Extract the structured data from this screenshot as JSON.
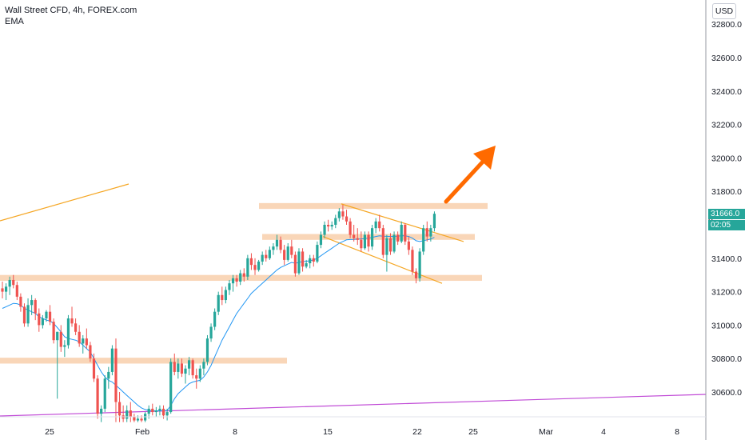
{
  "legend": {
    "title": "Wall Street CFD, 4h, FOREX.com",
    "indicator": "EMA"
  },
  "price_axis": {
    "currency_label": "USD",
    "current_price": "31666.0",
    "countdown": "02:05",
    "partial_label": "3"
  },
  "colors": {
    "up": "#26a69a",
    "down": "#ef5350",
    "ema": "#2196f3",
    "zone": "#f7c8a0",
    "trend_orange": "#f5a623",
    "trend_purple": "#c04ad6",
    "arrow": "#ff6a00",
    "price_badge": "#26a69a"
  },
  "chart_data": {
    "type": "candlestick",
    "symbol": "Wall Street CFD",
    "timeframe": "4h",
    "y_ticks": [
      30600,
      30800,
      31000,
      31200,
      31400,
      31600,
      31800,
      32000,
      32200,
      32400,
      32600,
      32800
    ],
    "ylim": [
      30420,
      32900
    ],
    "x_tick_labels": [
      "25",
      "Feb",
      "8",
      "15",
      "22",
      "25",
      "Mar",
      "4",
      "8"
    ],
    "price_range_pct": [
      0,
      1
    ],
    "last_price": 31666.0,
    "ohlc": [
      [
        31220,
        31260,
        31160,
        31200
      ],
      [
        31200,
        31250,
        31150,
        31230
      ],
      [
        31230,
        31290,
        31180,
        31270
      ],
      [
        31270,
        31300,
        31220,
        31240
      ],
      [
        31240,
        31260,
        31150,
        31170
      ],
      [
        31170,
        31190,
        31080,
        31110
      ],
      [
        31110,
        31130,
        30990,
        31010
      ],
      [
        31010,
        31160,
        30990,
        31120
      ],
      [
        31120,
        31180,
        31060,
        31150
      ],
      [
        31150,
        31160,
        31030,
        31070
      ],
      [
        31070,
        31100,
        30960,
        31000
      ],
      [
        31000,
        31060,
        30980,
        31040
      ],
      [
        31040,
        31090,
        31020,
        31080
      ],
      [
        31080,
        31120,
        31000,
        31020
      ],
      [
        31020,
        31040,
        30890,
        30910
      ],
      [
        30910,
        30960,
        30560,
        30960
      ],
      [
        30960,
        31000,
        30840,
        30870
      ],
      [
        30870,
        30910,
        30810,
        30880
      ],
      [
        30880,
        31060,
        30860,
        31040
      ],
      [
        31040,
        31110,
        30990,
        31010
      ],
      [
        31010,
        31040,
        30940,
        30960
      ],
      [
        30960,
        31000,
        30870,
        30890
      ],
      [
        30890,
        30940,
        30830,
        30920
      ],
      [
        30920,
        30980,
        30860,
        30880
      ],
      [
        30880,
        30900,
        30780,
        30800
      ],
      [
        30800,
        30830,
        30660,
        30680
      ],
      [
        30680,
        30700,
        30440,
        30470
      ],
      [
        30470,
        30520,
        30420,
        30500
      ],
      [
        30500,
        30700,
        30480,
        30680
      ],
      [
        30680,
        30750,
        30620,
        30720
      ],
      [
        30720,
        30880,
        30700,
        30860
      ],
      [
        30860,
        30920,
        30420,
        30540
      ],
      [
        30540,
        30600,
        30420,
        30460
      ],
      [
        30460,
        30520,
        30420,
        30440
      ],
      [
        30440,
        30520,
        30420,
        30490
      ],
      [
        30490,
        30540,
        30420,
        30450
      ],
      [
        30450,
        30470,
        30420,
        30430
      ],
      [
        30430,
        30460,
        30420,
        30440
      ],
      [
        30440,
        30460,
        30420,
        30430
      ],
      [
        30430,
        30480,
        30420,
        30470
      ],
      [
        30470,
        30520,
        30440,
        30500
      ],
      [
        30500,
        30530,
        30460,
        30480
      ],
      [
        30480,
        30510,
        30450,
        30490
      ],
      [
        30490,
        30520,
        30460,
        30500
      ],
      [
        30500,
        30520,
        30440,
        30460
      ],
      [
        30460,
        30500,
        30430,
        30480
      ],
      [
        30480,
        30800,
        30470,
        30780
      ],
      [
        30780,
        30830,
        30700,
        30720
      ],
      [
        30720,
        30800,
        30680,
        30770
      ],
      [
        30770,
        30800,
        30690,
        30710
      ],
      [
        30710,
        30760,
        30650,
        30740
      ],
      [
        30740,
        30810,
        30700,
        30790
      ],
      [
        30790,
        30800,
        30680,
        30700
      ],
      [
        30700,
        30740,
        30620,
        30680
      ],
      [
        30680,
        30760,
        30660,
        30740
      ],
      [
        30740,
        30800,
        30700,
        30780
      ],
      [
        30780,
        30940,
        30760,
        30920
      ],
      [
        30920,
        31010,
        30900,
        30990
      ],
      [
        30990,
        31100,
        30970,
        31080
      ],
      [
        31080,
        31200,
        31060,
        31180
      ],
      [
        31180,
        31230,
        31120,
        31150
      ],
      [
        31150,
        31230,
        31130,
        31210
      ],
      [
        31210,
        31270,
        31180,
        31250
      ],
      [
        31250,
        31300,
        31200,
        31280
      ],
      [
        31280,
        31300,
        31230,
        31260
      ],
      [
        31260,
        31330,
        31240,
        31310
      ],
      [
        31310,
        31340,
        31260,
        31290
      ],
      [
        31290,
        31420,
        31270,
        31400
      ],
      [
        31400,
        31430,
        31330,
        31360
      ],
      [
        31360,
        31400,
        31300,
        31330
      ],
      [
        31330,
        31390,
        31320,
        31380
      ],
      [
        31380,
        31440,
        31360,
        31420
      ],
      [
        31420,
        31450,
        31380,
        31400
      ],
      [
        31400,
        31470,
        31390,
        31450
      ],
      [
        31450,
        31490,
        31420,
        31470
      ],
      [
        31470,
        31540,
        31450,
        31510
      ],
      [
        31510,
        31530,
        31430,
        31450
      ],
      [
        31450,
        31480,
        31360,
        31390
      ],
      [
        31390,
        31490,
        31380,
        31470
      ],
      [
        31470,
        31510,
        31400,
        31420
      ],
      [
        31420,
        31440,
        31290,
        31310
      ],
      [
        31310,
        31460,
        31300,
        31440
      ],
      [
        31440,
        31460,
        31320,
        31350
      ],
      [
        31350,
        31390,
        31340,
        31370
      ],
      [
        31370,
        31420,
        31340,
        31400
      ],
      [
        31400,
        31420,
        31350,
        31380
      ],
      [
        31380,
        31500,
        31370,
        31480
      ],
      [
        31480,
        31560,
        31460,
        31540
      ],
      [
        31540,
        31620,
        31520,
        31600
      ],
      [
        31600,
        31630,
        31560,
        31590
      ],
      [
        31590,
        31620,
        31570,
        31600
      ],
      [
        31600,
        31660,
        31580,
        31640
      ],
      [
        31640,
        31700,
        31620,
        31680
      ],
      [
        31680,
        31720,
        31630,
        31650
      ],
      [
        31650,
        31690,
        31600,
        31620
      ],
      [
        31620,
        31640,
        31520,
        31540
      ],
      [
        31540,
        31600,
        31500,
        31520
      ],
      [
        31520,
        31580,
        31480,
        31510
      ],
      [
        31510,
        31560,
        31440,
        31460
      ],
      [
        31460,
        31560,
        31450,
        31540
      ],
      [
        31540,
        31560,
        31440,
        31470
      ],
      [
        31470,
        31600,
        31450,
        31580
      ],
      [
        31580,
        31640,
        31550,
        31620
      ],
      [
        31620,
        31660,
        31560,
        31580
      ],
      [
        31580,
        31600,
        31400,
        31420
      ],
      [
        31420,
        31540,
        31320,
        31520
      ],
      [
        31520,
        31550,
        31420,
        31440
      ],
      [
        31440,
        31560,
        31430,
        31540
      ],
      [
        31540,
        31560,
        31480,
        31500
      ],
      [
        31500,
        31620,
        31490,
        31600
      ],
      [
        31600,
        31610,
        31480,
        31500
      ],
      [
        31500,
        31530,
        31420,
        31450
      ],
      [
        31450,
        31470,
        31300,
        31320
      ],
      [
        31320,
        31340,
        31250,
        31280
      ],
      [
        31280,
        31460,
        31260,
        31440
      ],
      [
        31440,
        31600,
        31420,
        31580
      ],
      [
        31580,
        31620,
        31500,
        31530
      ],
      [
        31530,
        31600,
        31500,
        31580
      ],
      [
        31580,
        31680,
        31560,
        31666
      ]
    ],
    "ema": [
      31100,
      31110,
      31120,
      31130,
      31128,
      31120,
      31100,
      31090,
      31080,
      31070,
      31050,
      31040,
      31030,
      31025,
      31010,
      30985,
      30960,
      30930,
      30920,
      30915,
      30910,
      30900,
      30880,
      30860,
      30840,
      30800,
      30760,
      30720,
      30690,
      30670,
      30660,
      30640,
      30620,
      30600,
      30580,
      30560,
      30540,
      30520,
      30505,
      30495,
      30490,
      30488,
      30487,
      30488,
      30489,
      30489,
      30520,
      30560,
      30590,
      30610,
      30630,
      30650,
      30660,
      30665,
      30670,
      30690,
      30720,
      30760,
      30810,
      30860,
      30910,
      30950,
      30990,
      31030,
      31070,
      31100,
      31130,
      31160,
      31190,
      31210,
      31230,
      31250,
      31270,
      31290,
      31310,
      31330,
      31345,
      31355,
      31365,
      31375,
      31370,
      31375,
      31380,
      31382,
      31385,
      31390,
      31400,
      31415,
      31430,
      31445,
      31460,
      31475,
      31490,
      31500,
      31510,
      31512,
      31513,
      31515,
      31515,
      31518,
      31520,
      31525,
      31530,
      31534,
      31532,
      31531,
      31530,
      31531,
      31532,
      31535,
      31534,
      31530,
      31520,
      31505,
      31500,
      31505,
      31510,
      31515,
      31525
    ],
    "zones": [
      {
        "low": 31695,
        "high": 31730
      },
      {
        "low": 31510,
        "high": 31545
      },
      {
        "low": 31265,
        "high": 31300
      },
      {
        "low": 30770,
        "high": 30805
      }
    ],
    "channel_upper": [
      {
        "price": 31725
      },
      {
        "price": 31500
      }
    ],
    "channel_lower": [
      {
        "price": 31530
      },
      {
        "price": 31250
      }
    ]
  }
}
